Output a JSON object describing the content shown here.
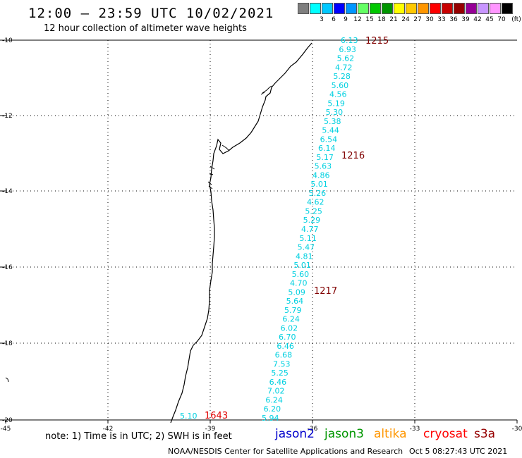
{
  "header": {
    "title": "12:00 – 23:59 UTC 10/02/2021",
    "subtitle": "12 hour collection of altimeter wave heights"
  },
  "scale": {
    "labels": [
      "3",
      "6",
      "9",
      "12",
      "15",
      "18",
      "21",
      "24",
      "27",
      "30",
      "33",
      "36",
      "39",
      "42",
      "45",
      "70"
    ],
    "unit": "(ft)",
    "colors": [
      "#7f7f7f",
      "#00ffff",
      "#00c8ff",
      "#0000ff",
      "#0096ff",
      "#64ff64",
      "#00c800",
      "#009600",
      "#ffff00",
      "#ffc800",
      "#ff9600",
      "#ff0000",
      "#c80000",
      "#960000",
      "#960096",
      "#c896ff",
      "#ff96ff",
      "#000000"
    ]
  },
  "axes": {
    "lat_labels": [
      "-10",
      "-12",
      "-14",
      "-16",
      "-18",
      "-20"
    ],
    "lon_labels": [
      "-45",
      "-42",
      "-39",
      "-36",
      "-33",
      "-30"
    ]
  },
  "track_1215": {
    "time_label": "1215",
    "values": [
      "6.13",
      "6.93",
      "5.62",
      "4.72",
      "5.28",
      "5.60",
      "4.56",
      "5.19",
      "5.30",
      "5.38",
      "5.44",
      "6.54",
      "6.14",
      "5.17",
      "5.63",
      "4.86",
      "5.01",
      "5.26",
      "4.62",
      "5.25",
      "5.29",
      "4.77",
      "5.11",
      "5.47",
      "4.81",
      "5.01",
      "5.60",
      "4.70",
      "5.09",
      "5.64",
      "5.79",
      "6.24",
      "6.02",
      "6.70",
      "6.46",
      "6.68",
      "7.53",
      "5.25",
      "6.46",
      "7.02",
      "6.24",
      "6.20",
      "5.94"
    ],
    "time_labels_mid": [
      "1216",
      "1217"
    ]
  },
  "track_1643": {
    "time_label": "1643",
    "values": [
      "5.10"
    ]
  },
  "footer": {
    "note": "note: 1) Time is in UTC; 2) SWH is in feet",
    "satellites": [
      {
        "name": "jason2",
        "color": "#0000cc"
      },
      {
        "name": "jason3",
        "color": "#009600"
      },
      {
        "name": "altika",
        "color": "#ff9600"
      },
      {
        "name": "cryosat",
        "color": "#ff0000"
      },
      {
        "name": "s3a",
        "color": "#960000"
      }
    ],
    "credit": "NOAA/NESDIS Center for Satellite Applications and Research",
    "timestamp": "Oct  5 08:27:43 UTC 2021"
  },
  "colors": {
    "track_value": "#00d0e0",
    "time_label": "#800000",
    "time_label_red": "#e00000"
  }
}
